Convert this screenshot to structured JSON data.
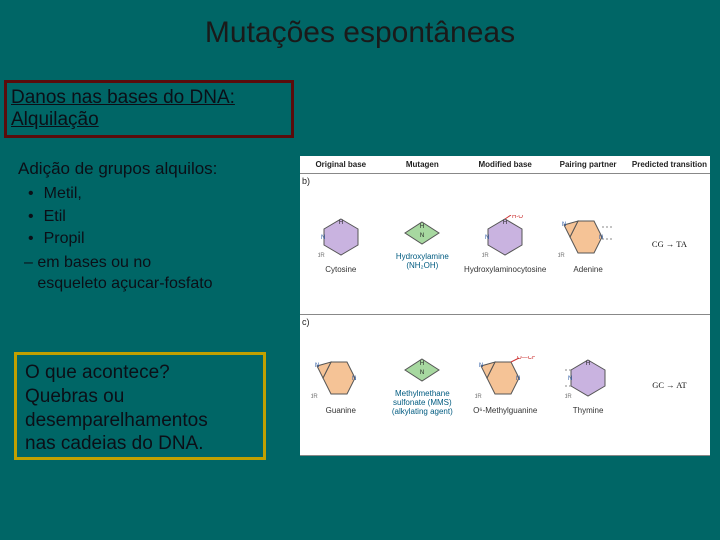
{
  "title": "Mutações espontâneas",
  "box1": {
    "line1": "Danos nas bases do DNA:",
    "line2": " Alquilação",
    "border_color": "#5a0b0b"
  },
  "box2": {
    "heading": "Adição de grupos alquilos:",
    "items": [
      "Metil,",
      "Etil",
      "Propil"
    ],
    "footer": "– em bases ou no\n   esqueleto açucar-fosfato"
  },
  "box3": {
    "text": "O que acontece?\nQuebras ou\ndesemparelhamentos\nnas cadeias do DNA.",
    "border_color": "#c0a000"
  },
  "figure": {
    "headers": [
      "Original base",
      "Mutagen",
      "Modified base",
      "Pairing partner",
      "Predicted transition"
    ],
    "rows": [
      {
        "row_label": "b)",
        "original": {
          "name": "Cytosine",
          "ring": "pyrimidine",
          "fill": "#c9b3e0"
        },
        "mutagen": {
          "name": "Hydroxylamine (NH₂OH)",
          "fill": "#a7d8a0"
        },
        "modified": {
          "name": "Hydroxylaminocytosine",
          "ring": "pyrimidine",
          "fill": "#c9b3e0"
        },
        "partner": {
          "name": "Adenine",
          "ring": "purine",
          "fill": "#f5c396"
        },
        "transition": "CG → TA"
      },
      {
        "row_label": "c)",
        "original": {
          "name": "Guanine",
          "ring": "purine",
          "fill": "#f5c396"
        },
        "mutagen": {
          "name": "Methylmethane sulfonate (MMS) (alkylating agent)",
          "fill": "#a7d8a0"
        },
        "modified": {
          "name": "O⁶-Methylguanine",
          "ring": "purine",
          "fill": "#f5c396"
        },
        "partner": {
          "name": "Thymine",
          "ring": "pyrimidine",
          "fill": "#c9b3e0"
        },
        "transition": "GC → AT"
      }
    ],
    "colors": {
      "bond": "#555555",
      "nitrogen_blue": "#2b59a3",
      "oxygen_red": "#cc3333",
      "bg": "#ffffff"
    }
  },
  "styling": {
    "background": "#006666",
    "title_fontsize": 30,
    "title_color": "#1a1a1a",
    "box_text_color": "#0b0f17",
    "body_fontsize": 16,
    "box3_fontsize": 19
  }
}
